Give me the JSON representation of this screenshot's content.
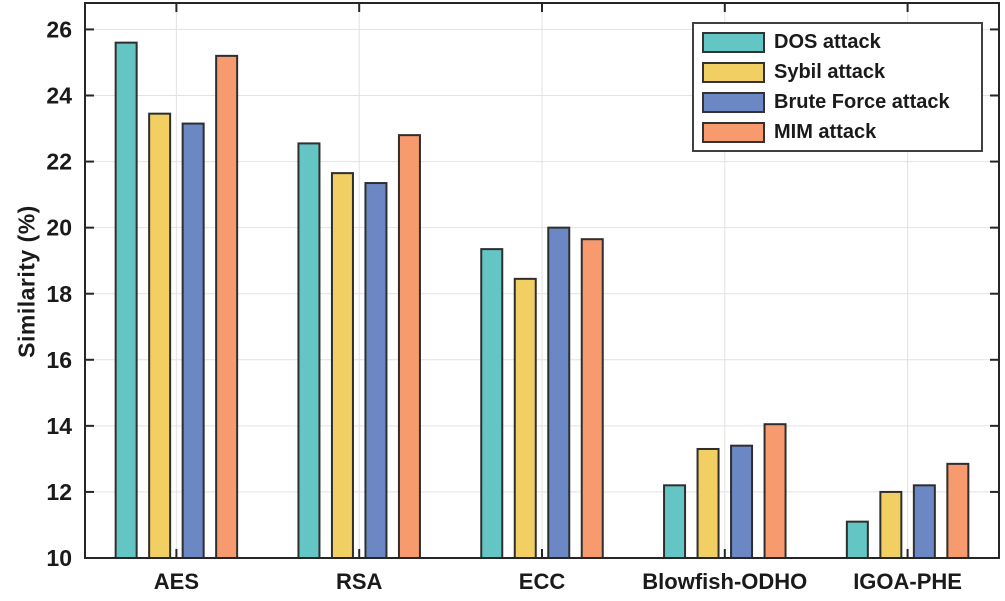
{
  "chart_data": {
    "type": "bar",
    "title": "",
    "xlabel": "",
    "ylabel": "Similarity (%)",
    "categories": [
      "AES",
      "RSA",
      "ECC",
      "Blowfish-ODHO",
      "IGOA-PHE"
    ],
    "series": [
      {
        "name": "DOS attack",
        "color": "#63C6C4",
        "values": [
          25.6,
          22.55,
          19.35,
          12.2,
          11.1
        ]
      },
      {
        "name": "Sybil attack",
        "color": "#F1CF63",
        "values": [
          23.45,
          21.65,
          18.45,
          13.3,
          12.0
        ]
      },
      {
        "name": "Brute Force attack",
        "color": "#6B88C4",
        "values": [
          23.15,
          21.35,
          20.0,
          13.4,
          12.2
        ]
      },
      {
        "name": "MIM attack",
        "color": "#F79A6E",
        "values": [
          25.2,
          22.8,
          19.65,
          14.05,
          12.85
        ]
      }
    ],
    "ylim": [
      10,
      26.8
    ],
    "yticks": [
      10,
      12,
      14,
      16,
      18,
      20,
      22,
      24,
      26
    ],
    "grid": true,
    "legend_position": "top-right"
  },
  "style": {
    "background": "#FFFFFF",
    "axis_color": "#262626",
    "grid_color": "#E2E2E2",
    "bar_edge_color": "#2E2E2E",
    "text_color": "#1A1A1A"
  }
}
